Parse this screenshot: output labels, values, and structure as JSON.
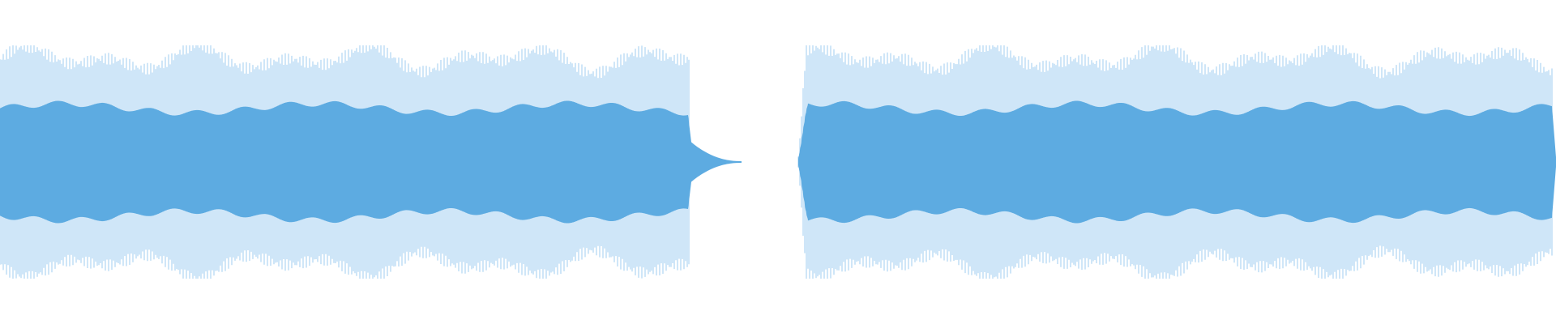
{
  "waveform": {
    "colors": {
      "background": "#ffffff",
      "core": "#5dabe1",
      "strands": "#9fcdf0"
    },
    "segments": [
      {
        "id": "clip-1",
        "start_fraction": 0.0,
        "end_fraction": 0.443,
        "peak": 0.72,
        "rms": 0.36,
        "fade_out": true
      },
      {
        "id": "clip-2",
        "start_fraction": 0.513,
        "end_fraction": 0.998,
        "peak": 0.72,
        "rms": 0.36,
        "fade_in": true
      }
    ]
  }
}
